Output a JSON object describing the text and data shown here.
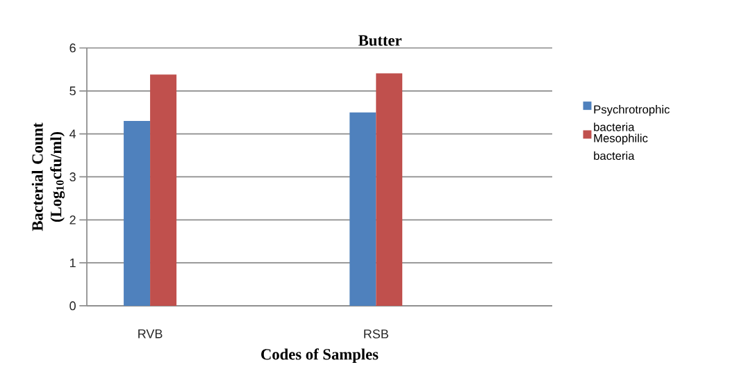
{
  "chart_data": {
    "type": "bar",
    "title": "Butter",
    "xlabel": "Codes of Samples",
    "ylabel": "Bacterial Count (Log$_{10}$cfu/ml)",
    "categories": [
      "RVB",
      "RSB"
    ],
    "series": [
      {
        "name": "Psychrotrophic bacteria",
        "color": "#4f81bd",
        "values": [
          4.3,
          4.5
        ]
      },
      {
        "name": "Mesophilic bacteria",
        "color": "#c0504d",
        "values": [
          5.38,
          5.41
        ]
      }
    ],
    "ylim": [
      0,
      6
    ],
    "yticks": [
      0,
      1,
      2,
      3,
      4,
      5,
      6
    ],
    "grid": "y",
    "legend": "right"
  }
}
